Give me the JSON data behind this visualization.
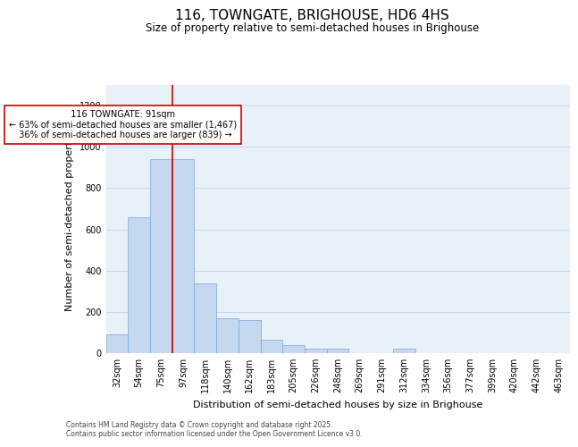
{
  "title": "116, TOWNGATE, BRIGHOUSE, HD6 4HS",
  "subtitle": "Size of property relative to semi-detached houses in Brighouse",
  "xlabel": "Distribution of semi-detached houses by size in Brighouse",
  "ylabel": "Number of semi-detached properties",
  "categories": [
    "32sqm",
    "54sqm",
    "75sqm",
    "97sqm",
    "118sqm",
    "140sqm",
    "162sqm",
    "183sqm",
    "205sqm",
    "226sqm",
    "248sqm",
    "269sqm",
    "291sqm",
    "312sqm",
    "334sqm",
    "356sqm",
    "377sqm",
    "399sqm",
    "420sqm",
    "442sqm",
    "463sqm"
  ],
  "values": [
    90,
    660,
    940,
    940,
    340,
    170,
    160,
    65,
    40,
    20,
    20,
    0,
    0,
    20,
    0,
    0,
    0,
    0,
    0,
    0,
    0
  ],
  "bar_color": "#c5d8f0",
  "bar_edge_color": "#7aa8d4",
  "grid_color": "#c8d8e8",
  "background_color": "#e8f0f8",
  "property_label": "116 TOWNGATE: 91sqm",
  "pct_smaller": 63,
  "pct_larger": 36,
  "n_smaller": 1467,
  "n_larger": 839,
  "annotation_box_color": "#cc0000",
  "vline_color": "#cc0000",
  "vline_x_index": 2.5,
  "ylim": [
    0,
    1300
  ],
  "yticks": [
    0,
    200,
    400,
    600,
    800,
    1000,
    1200
  ],
  "footer": "Contains HM Land Registry data © Crown copyright and database right 2025.\nContains public sector information licensed under the Open Government Licence v3.0.",
  "title_fontsize": 11,
  "subtitle_fontsize": 8.5,
  "xlabel_fontsize": 8,
  "ylabel_fontsize": 8,
  "tick_fontsize": 7,
  "footer_fontsize": 5.5
}
